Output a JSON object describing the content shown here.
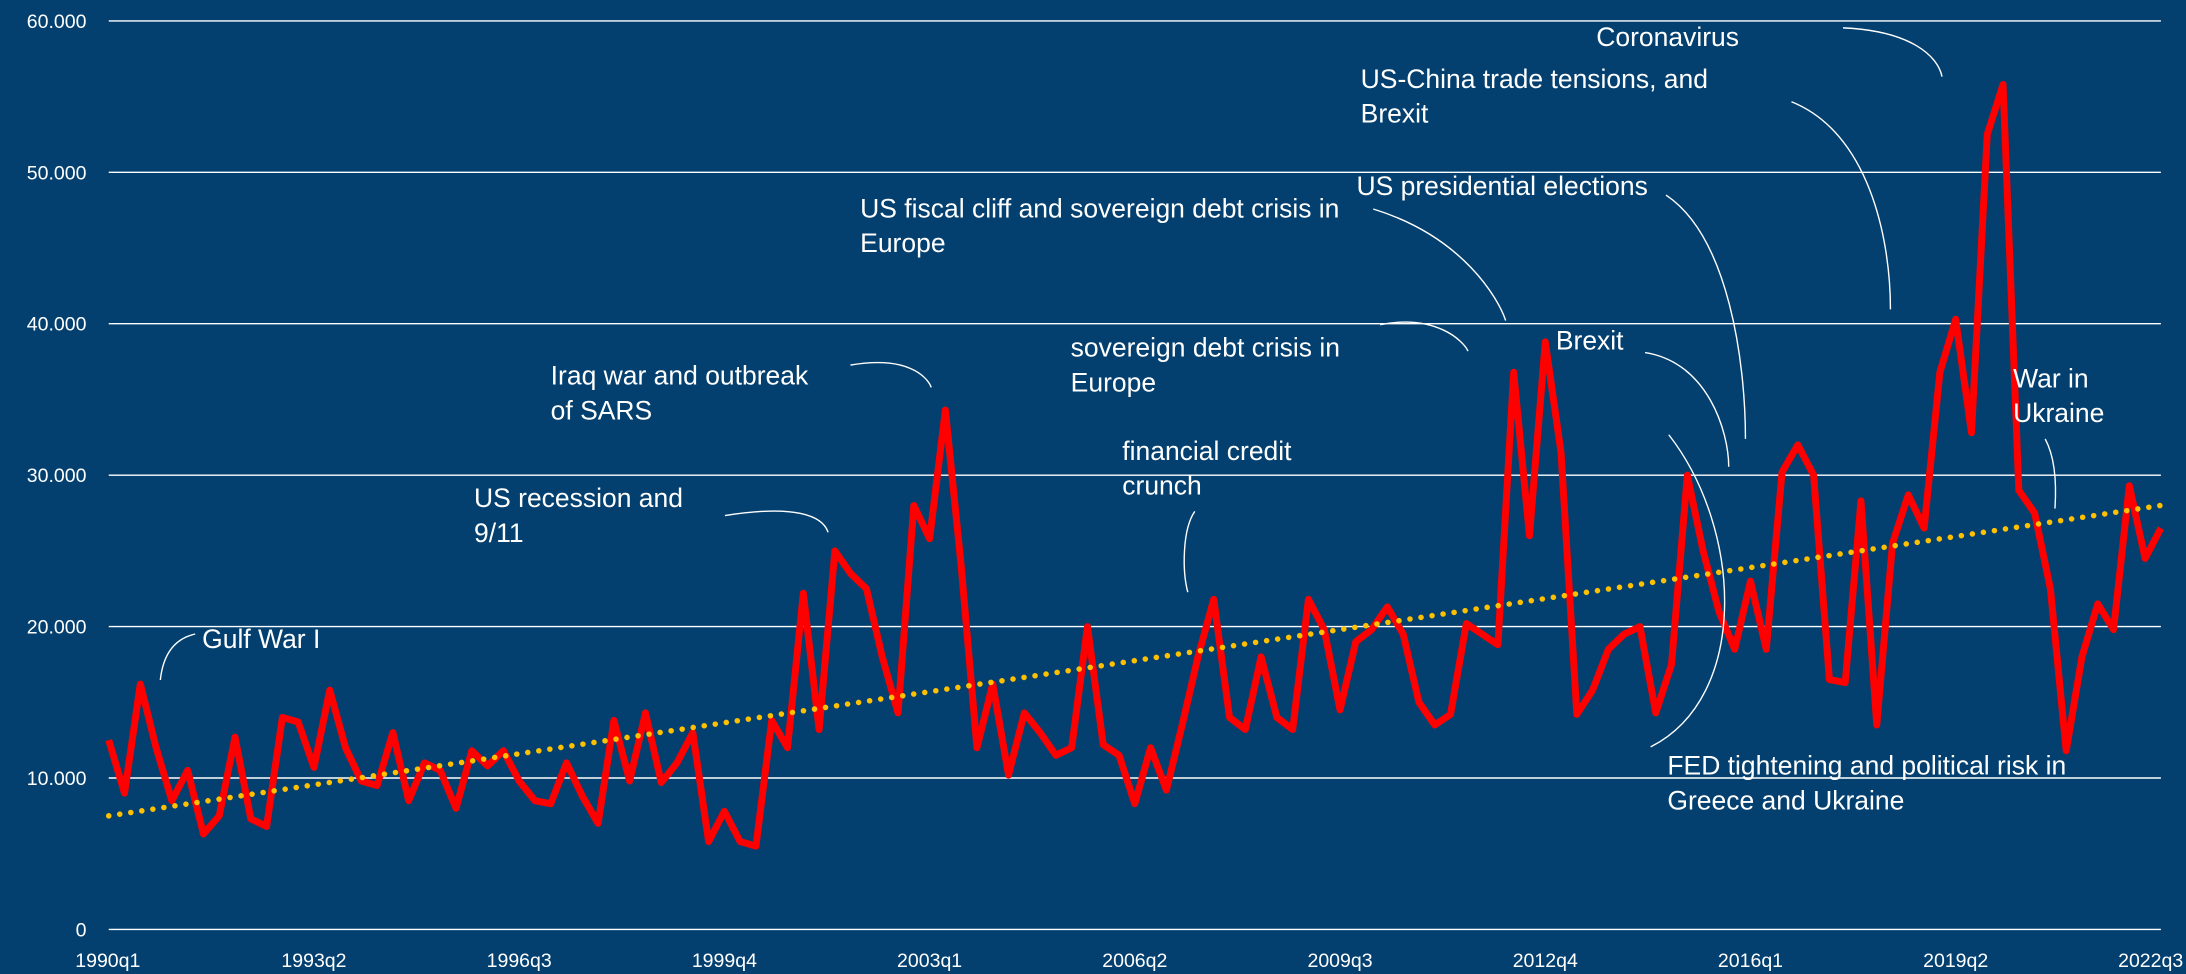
{
  "chart_data": {
    "type": "line",
    "categories": [
      "1990q1",
      null,
      null,
      null,
      null,
      null,
      null,
      null,
      null,
      null,
      null,
      null,
      null,
      "1993q2",
      null,
      null,
      null,
      null,
      null,
      null,
      null,
      null,
      null,
      null,
      null,
      null,
      "1996q3",
      null,
      null,
      null,
      null,
      null,
      null,
      null,
      null,
      null,
      null,
      null,
      null,
      "1999q4",
      null,
      null,
      null,
      null,
      null,
      null,
      null,
      null,
      null,
      null,
      null,
      null,
      "2003q1",
      null,
      null,
      null,
      null,
      null,
      null,
      null,
      null,
      null,
      null,
      null,
      null,
      "2006q2",
      null,
      null,
      null,
      null,
      null,
      null,
      null,
      null,
      null,
      null,
      null,
      null,
      "2009q3",
      null,
      null,
      null,
      null,
      null,
      null,
      null,
      null,
      null,
      null,
      null,
      null,
      "2012q4",
      null,
      null,
      null,
      null,
      null,
      null,
      null,
      null,
      null,
      null,
      null,
      null,
      "2016q1",
      null,
      null,
      null,
      null,
      null,
      null,
      null,
      null,
      null,
      null,
      null,
      null,
      "2019q2",
      null,
      null,
      null,
      null,
      null,
      null,
      null,
      null,
      null,
      null,
      null,
      null,
      "2022q3"
    ],
    "values": [
      12.5,
      9,
      16.2,
      12,
      8.5,
      10.5,
      6.3,
      7.5,
      12.7,
      7.3,
      6.8,
      14,
      13.7,
      10.7,
      15.8,
      12,
      9.8,
      9.5,
      13,
      8.5,
      11,
      10.5,
      8,
      11.8,
      10.8,
      11.8,
      9.8,
      8.5,
      8.3,
      11,
      8.8,
      7,
      13.8,
      9.8,
      14.3,
      9.7,
      11,
      13,
      5.8,
      7.8,
      5.8,
      5.5,
      13.8,
      12,
      22.2,
      13.2,
      25,
      23.5,
      22.5,
      18,
      14.3,
      28,
      25.8,
      34.3,
      24,
      12,
      16.2,
      10.2,
      14.3,
      13,
      11.5,
      12,
      20,
      12.2,
      11.5,
      8.3,
      12,
      9.2,
      13.5,
      18,
      21.8,
      14,
      13.2,
      18,
      14,
      13.2,
      21.8,
      19.8,
      14.5,
      19,
      19.8,
      21.3,
      19.5,
      15,
      13.5,
      14.2,
      20.2,
      19.5,
      18.8,
      36.8,
      26,
      38.8,
      31.5,
      14.2,
      15.8,
      18.5,
      19.5,
      20,
      14.3,
      17.5,
      30,
      25,
      21,
      18.5,
      23,
      18.5,
      30.2,
      32,
      30,
      16.5,
      16.3,
      28.3,
      13.5,
      25.5,
      28.7,
      26.5,
      36.8,
      40.3,
      32.8,
      52.5,
      55.8,
      29,
      27.5,
      22.5,
      11.8,
      18,
      21.5,
      19.8,
      29.3,
      24.5,
      26.5
    ],
    "color": "#ff0000",
    "trend": {
      "color": "#ffc000",
      "values": [
        7.5,
        28
      ]
    },
    "ylim": [
      0,
      60
    ],
    "yticks": [
      0,
      {
        "value": 10,
        "label": "10.000"
      },
      {
        "value": 20,
        "label": "20.000"
      },
      {
        "value": 30,
        "label": "30.000"
      },
      {
        "value": 40,
        "label": "40.000"
      },
      {
        "value": 50,
        "label": "50.000"
      },
      {
        "value": 60,
        "label": "60.000"
      }
    ],
    "grid": true,
    "annotations": [
      [
        "Gulf War I"
      ],
      [
        "US recession and",
        "9/11"
      ],
      [
        "Iraq war and outbreak",
        "of SARS"
      ],
      [
        "financial credit",
        "crunch"
      ],
      [
        "sovereign debt crisis in",
        "Europe"
      ],
      [
        "US fiscal cliff and sovereign debt crisis in",
        "Europe"
      ],
      [
        "US presidential elections"
      ],
      [
        "Brexit"
      ],
      [
        "US-China trade tensions, and",
        "Brexit"
      ],
      [
        "Coronavirus"
      ],
      [
        "War in",
        "Ukraine"
      ],
      [
        "FED tightening and political risk in",
        "Greece and Ukraine"
      ]
    ]
  }
}
